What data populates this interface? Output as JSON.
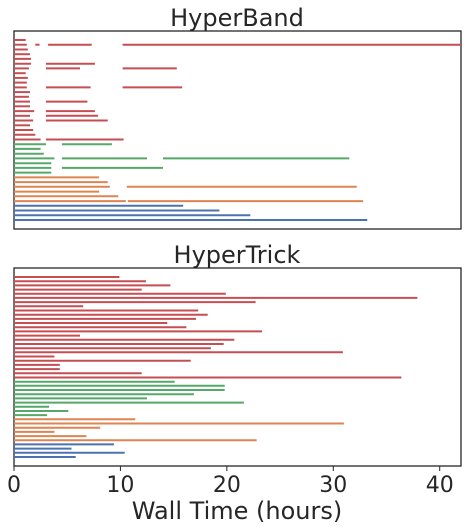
{
  "chart_data": {
    "type": "timeline",
    "xlabel": "Wall Time (hours)",
    "xlim": [
      0,
      42
    ],
    "xticks": [
      0,
      10,
      20,
      30,
      40
    ],
    "colors": {
      "blue": "#4c72b0",
      "orange": "#dd8452",
      "green": "#55a868",
      "red": "#c44e52"
    },
    "panels": [
      {
        "title": "HyperBand",
        "rows": [
          {
            "color": "blue",
            "segments": [
              [
                0,
                33.2
              ]
            ]
          },
          {
            "color": "blue",
            "segments": [
              [
                0,
                22.2
              ]
            ]
          },
          {
            "color": "blue",
            "segments": [
              [
                0,
                19.3
              ]
            ]
          },
          {
            "color": "blue",
            "segments": [
              [
                0,
                15.9
              ]
            ]
          },
          {
            "color": "orange",
            "segments": [
              [
                0,
                10.5
              ],
              [
                10.7,
                32.8
              ]
            ]
          },
          {
            "color": "orange",
            "segments": [
              [
                0,
                9.8
              ]
            ]
          },
          {
            "color": "orange",
            "segments": [
              [
                0,
                8.0
              ]
            ]
          },
          {
            "color": "orange",
            "segments": [
              [
                0,
                9.0
              ],
              [
                10.6,
                32.2
              ]
            ]
          },
          {
            "color": "orange",
            "segments": [
              [
                0,
                8.8
              ]
            ]
          },
          {
            "color": "orange",
            "segments": [
              [
                0,
                8.0
              ]
            ]
          },
          {
            "color": "green",
            "segments": [
              [
                0,
                3.5
              ]
            ]
          },
          {
            "color": "green",
            "segments": [
              [
                0,
                3.5
              ],
              [
                4.5,
                14.0
              ]
            ]
          },
          {
            "color": "green",
            "segments": [
              [
                0,
                3.5
              ]
            ]
          },
          {
            "color": "green",
            "segments": [
              [
                0,
                3.8
              ],
              [
                4.5,
                12.5
              ],
              [
                14.0,
                31.5
              ]
            ]
          },
          {
            "color": "green",
            "segments": [
              [
                0,
                2.8
              ]
            ]
          },
          {
            "color": "green",
            "segments": [
              [
                0,
                2.5
              ]
            ]
          },
          {
            "color": "green",
            "segments": [
              [
                0,
                3.0
              ],
              [
                4.5,
                9.2
              ]
            ]
          },
          {
            "color": "red",
            "segments": [
              [
                0,
                2.5
              ],
              [
                3.0,
                10.3
              ]
            ]
          },
          {
            "color": "red",
            "segments": [
              [
                0,
                2.0
              ]
            ]
          },
          {
            "color": "red",
            "segments": [
              [
                0,
                1.8
              ]
            ]
          },
          {
            "color": "red",
            "segments": [
              [
                0,
                1.5
              ]
            ]
          },
          {
            "color": "red",
            "segments": [
              [
                0,
                1.8
              ],
              [
                3.0,
                8.8
              ]
            ]
          },
          {
            "color": "red",
            "segments": [
              [
                0,
                1.5
              ],
              [
                3.0,
                7.9
              ]
            ]
          },
          {
            "color": "red",
            "segments": [
              [
                0,
                1.9
              ],
              [
                3.0,
                7.6
              ]
            ]
          },
          {
            "color": "red",
            "segments": [
              [
                0,
                1.5
              ]
            ]
          },
          {
            "color": "red",
            "segments": [
              [
                0,
                1.5
              ],
              [
                3.0,
                6.9
              ]
            ]
          },
          {
            "color": "red",
            "segments": [
              [
                0,
                1.4
              ]
            ]
          },
          {
            "color": "red",
            "segments": [
              [
                0,
                1.5
              ]
            ]
          },
          {
            "color": "red",
            "segments": [
              [
                0,
                1.2
              ],
              [
                3.0,
                7.2
              ],
              [
                10.2,
                15.8
              ]
            ]
          },
          {
            "color": "red",
            "segments": [
              [
                0,
                1.2
              ]
            ]
          },
          {
            "color": "red",
            "segments": [
              [
                0,
                1.3
              ]
            ]
          },
          {
            "color": "red",
            "segments": [
              [
                0,
                1.1
              ]
            ]
          },
          {
            "color": "red",
            "segments": [
              [
                0,
                1.4
              ],
              [
                3.0,
                6.2
              ],
              [
                10.2,
                15.3
              ]
            ]
          },
          {
            "color": "red",
            "segments": [
              [
                0,
                1.6
              ],
              [
                3.0,
                7.6
              ]
            ]
          },
          {
            "color": "red",
            "segments": [
              [
                0,
                1.6
              ]
            ]
          },
          {
            "color": "red",
            "segments": [
              [
                0,
                1.5
              ]
            ]
          },
          {
            "color": "red",
            "segments": [
              [
                0,
                1.3
              ]
            ]
          },
          {
            "color": "red",
            "segments": [
              [
                0,
                1.2
              ],
              [
                2.0,
                2.4
              ],
              [
                3.2,
                7.3
              ],
              [
                10.2,
                42.0
              ]
            ]
          },
          {
            "color": "red",
            "segments": [
              [
                0,
                1.1
              ]
            ]
          }
        ]
      },
      {
        "title": "HyperTrick",
        "rows": [
          {
            "color": "blue",
            "segments": [
              [
                0,
                5.8
              ]
            ]
          },
          {
            "color": "blue",
            "segments": [
              [
                0,
                10.4
              ]
            ]
          },
          {
            "color": "blue",
            "segments": [
              [
                0,
                5.4
              ]
            ]
          },
          {
            "color": "blue",
            "segments": [
              [
                0,
                9.4
              ]
            ]
          },
          {
            "color": "orange",
            "segments": [
              [
                0,
                22.8
              ]
            ]
          },
          {
            "color": "orange",
            "segments": [
              [
                0,
                6.8
              ]
            ]
          },
          {
            "color": "orange",
            "segments": [
              [
                0,
                3.8
              ]
            ]
          },
          {
            "color": "orange",
            "segments": [
              [
                0,
                8.1
              ]
            ]
          },
          {
            "color": "orange",
            "segments": [
              [
                0,
                31.0
              ]
            ]
          },
          {
            "color": "orange",
            "segments": [
              [
                0,
                11.4
              ]
            ]
          },
          {
            "color": "green",
            "segments": [
              [
                0,
                3.1
              ]
            ]
          },
          {
            "color": "green",
            "segments": [
              [
                0,
                5.1
              ]
            ]
          },
          {
            "color": "green",
            "segments": [
              [
                0,
                3.3
              ]
            ]
          },
          {
            "color": "green",
            "segments": [
              [
                0,
                21.6
              ]
            ]
          },
          {
            "color": "green",
            "segments": [
              [
                0,
                12.5
              ]
            ]
          },
          {
            "color": "green",
            "segments": [
              [
                0,
                16.9
              ]
            ]
          },
          {
            "color": "green",
            "segments": [
              [
                0,
                19.8
              ]
            ]
          },
          {
            "color": "green",
            "segments": [
              [
                0,
                19.8
              ]
            ]
          },
          {
            "color": "green",
            "segments": [
              [
                0,
                15.1
              ]
            ]
          },
          {
            "color": "red",
            "segments": [
              [
                0,
                36.4
              ]
            ]
          },
          {
            "color": "red",
            "segments": [
              [
                0,
                12.0
              ]
            ]
          },
          {
            "color": "red",
            "segments": [
              [
                0,
                4.3
              ]
            ]
          },
          {
            "color": "red",
            "segments": [
              [
                0,
                4.3
              ]
            ]
          },
          {
            "color": "red",
            "segments": [
              [
                0,
                16.6
              ]
            ]
          },
          {
            "color": "red",
            "segments": [
              [
                0,
                3.8
              ]
            ]
          },
          {
            "color": "red",
            "segments": [
              [
                0,
                30.9
              ]
            ]
          },
          {
            "color": "red",
            "segments": [
              [
                0,
                18.5
              ]
            ]
          },
          {
            "color": "red",
            "segments": [
              [
                0,
                19.7
              ]
            ]
          },
          {
            "color": "red",
            "segments": [
              [
                0,
                20.7
              ]
            ]
          },
          {
            "color": "red",
            "segments": [
              [
                0,
                6.2
              ]
            ]
          },
          {
            "color": "red",
            "segments": [
              [
                0,
                23.3
              ]
            ]
          },
          {
            "color": "red",
            "segments": [
              [
                0,
                16.2
              ]
            ]
          },
          {
            "color": "red",
            "segments": [
              [
                0,
                14.4
              ]
            ]
          },
          {
            "color": "red",
            "segments": [
              [
                0,
                17.1
              ]
            ]
          },
          {
            "color": "red",
            "segments": [
              [
                0,
                18.2
              ]
            ]
          },
          {
            "color": "red",
            "segments": [
              [
                0,
                17.3
              ]
            ]
          },
          {
            "color": "red",
            "segments": [
              [
                0,
                6.5
              ]
            ]
          },
          {
            "color": "red",
            "segments": [
              [
                0,
                22.7
              ]
            ]
          },
          {
            "color": "red",
            "segments": [
              [
                0,
                37.9
              ]
            ]
          },
          {
            "color": "red",
            "segments": [
              [
                0,
                19.9
              ]
            ]
          },
          {
            "color": "red",
            "segments": [
              [
                0,
                12.0
              ]
            ]
          },
          {
            "color": "red",
            "segments": [
              [
                0,
                14.7
              ]
            ]
          },
          {
            "color": "red",
            "segments": [
              [
                0,
                12.4
              ]
            ]
          },
          {
            "color": "red",
            "segments": [
              [
                0,
                9.9
              ]
            ]
          }
        ]
      }
    ]
  }
}
